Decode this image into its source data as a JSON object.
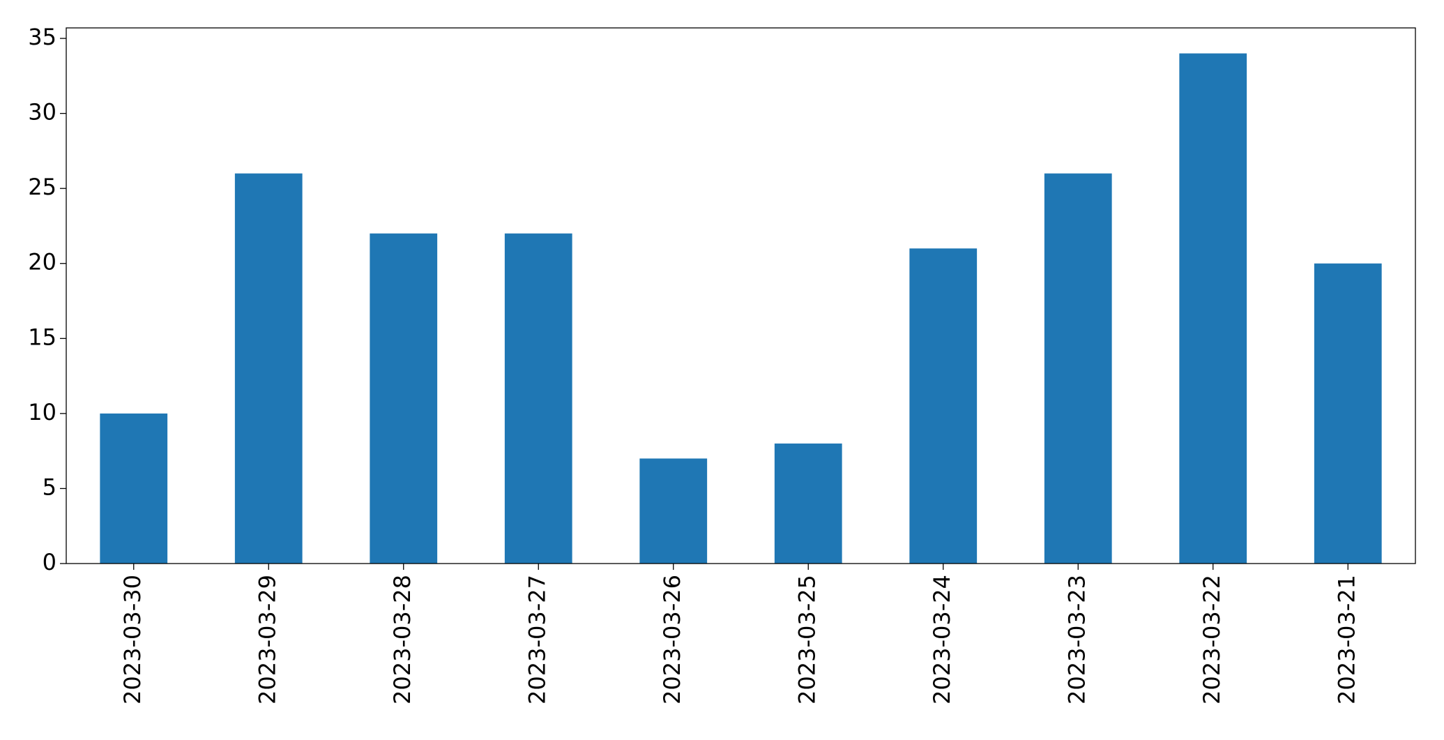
{
  "chart_data": {
    "type": "bar",
    "categories": [
      "2023-03-30",
      "2023-03-29",
      "2023-03-28",
      "2023-03-27",
      "2023-03-26",
      "2023-03-25",
      "2023-03-24",
      "2023-03-23",
      "2023-03-22",
      "2023-03-21"
    ],
    "values": [
      10,
      26,
      22,
      22,
      7,
      8,
      21,
      26,
      34,
      20
    ],
    "color": "#1f77b4",
    "ylim": [
      0,
      35.7
    ],
    "yticks": [
      0,
      5,
      10,
      15,
      20,
      25,
      30,
      35
    ],
    "grid": false
  }
}
